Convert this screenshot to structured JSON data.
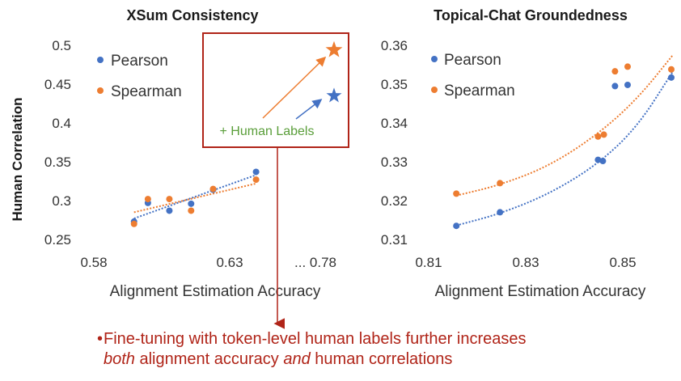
{
  "colors": {
    "pearson": "#4472c4",
    "spearman": "#ed7d31",
    "highlight_box": "#b02418",
    "human_label_text": "#5a9e3a",
    "note_text": "#b02418"
  },
  "shared": {
    "y_axis_label": "Human Correlation"
  },
  "chart_data": [
    {
      "type": "scatter",
      "title": "XSum Consistency",
      "xlabel": "Alignment Estimation Accuracy",
      "ylabel": "Human Correlation",
      "xlim": [
        0.58,
        0.64
      ],
      "ylim": [
        0.25,
        0.5
      ],
      "x_ticks": [
        "0.58",
        "0.63"
      ],
      "x_tick_values": [
        0.58,
        0.63
      ],
      "x_break_tick": "... 0.78",
      "y_ticks": [
        "0.5",
        "0.45",
        "0.4",
        "0.35",
        "0.3",
        "0.25"
      ],
      "y_tick_values": [
        0.5,
        0.45,
        0.4,
        0.35,
        0.3,
        0.25
      ],
      "legend": [
        "Pearson",
        "Spearman"
      ],
      "legend_position": "top-left",
      "series": [
        {
          "name": "Pearson",
          "x": [
            0.5948,
            0.5999,
            0.6078,
            0.6158,
            0.6239,
            0.6397
          ],
          "y": [
            0.273,
            0.297,
            0.287,
            0.296,
            0.314,
            0.337
          ]
        },
        {
          "name": "Spearman",
          "x": [
            0.5948,
            0.5999,
            0.6078,
            0.6158,
            0.6239,
            0.6397
          ],
          "y": [
            0.27,
            0.302,
            0.302,
            0.287,
            0.315,
            0.327
          ]
        }
      ],
      "trendlines": [
        {
          "series": "Pearson",
          "from": [
            0.5948,
            0.277
          ],
          "to": [
            0.6397,
            0.333
          ]
        },
        {
          "series": "Spearman",
          "from": [
            0.5948,
            0.285
          ],
          "to": [
            0.6397,
            0.322
          ]
        }
      ],
      "human_label_points": {
        "label": "+ Human Labels",
        "x": 0.78,
        "pearson": 0.435,
        "spearman": 0.494
      }
    },
    {
      "type": "scatter",
      "title": "Topical-Chat Groundedness",
      "xlabel": "Alignment Estimation Accuracy",
      "ylabel": "Human Correlation",
      "xlim": [
        0.81,
        0.86
      ],
      "ylim": [
        0.31,
        0.36
      ],
      "x_ticks": [
        "0.81",
        "0.83",
        "0.85"
      ],
      "x_tick_values": [
        0.81,
        0.83,
        0.85
      ],
      "y_ticks": [
        "0.36",
        "0.35",
        "0.34",
        "0.33",
        "0.32",
        "0.31"
      ],
      "y_tick_values": [
        0.36,
        0.35,
        0.34,
        0.33,
        0.32,
        0.31
      ],
      "legend": [
        "Pearson",
        "Spearman"
      ],
      "legend_position": "top-left",
      "series": [
        {
          "name": "Pearson",
          "x": [
            0.8157,
            0.8247,
            0.8449,
            0.8459,
            0.8484,
            0.851,
            0.86
          ],
          "y": [
            0.3135,
            0.317,
            0.3305,
            0.3302,
            0.3495,
            0.3498,
            0.3517
          ]
        },
        {
          "name": "Spearman",
          "x": [
            0.8157,
            0.8247,
            0.8449,
            0.8461,
            0.8484,
            0.851,
            0.86
          ],
          "y": [
            0.3218,
            0.3245,
            0.3365,
            0.337,
            0.3533,
            0.3545,
            0.3538
          ]
        }
      ],
      "trendlines": [
        {
          "series": "Pearson",
          "points": [
            [
              0.8157,
              0.3136
            ],
            [
              0.8247,
              0.3166
            ],
            [
              0.835,
              0.3218
            ],
            [
              0.845,
              0.3295
            ],
            [
              0.853,
              0.339
            ],
            [
              0.8602,
              0.353
            ]
          ]
        },
        {
          "series": "Spearman",
          "points": [
            [
              0.8157,
              0.3213
            ],
            [
              0.8247,
              0.324
            ],
            [
              0.835,
              0.329
            ],
            [
              0.845,
              0.3372
            ],
            [
              0.853,
              0.3462
            ],
            [
              0.8602,
              0.3573
            ]
          ]
        }
      ]
    }
  ],
  "note": {
    "bullet": "•",
    "line1": "Fine-tuning with token-level human labels further increases",
    "line2_em1": "both",
    "line2_mid": " alignment accuracy ",
    "line2_em2": "and",
    "line2_end": " human correlations"
  }
}
